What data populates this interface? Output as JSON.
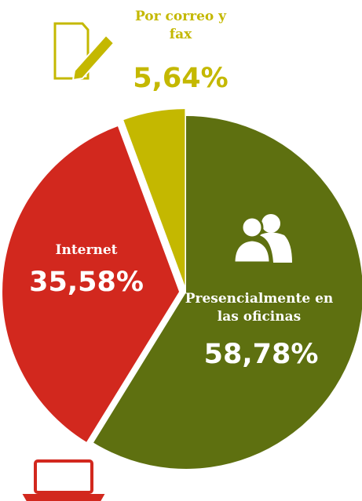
{
  "chart_data": {
    "type": "pie",
    "categories": [
      "Presencialmente en las oficinas",
      "Internet",
      "Por correo y fax"
    ],
    "values": [
      58.78,
      35.58,
      5.64
    ],
    "value_labels": [
      "58,78%",
      "35,58%",
      "5,64%"
    ],
    "colors": [
      "#5e7010",
      "#d2281e",
      "#c4b800"
    ]
  }
}
